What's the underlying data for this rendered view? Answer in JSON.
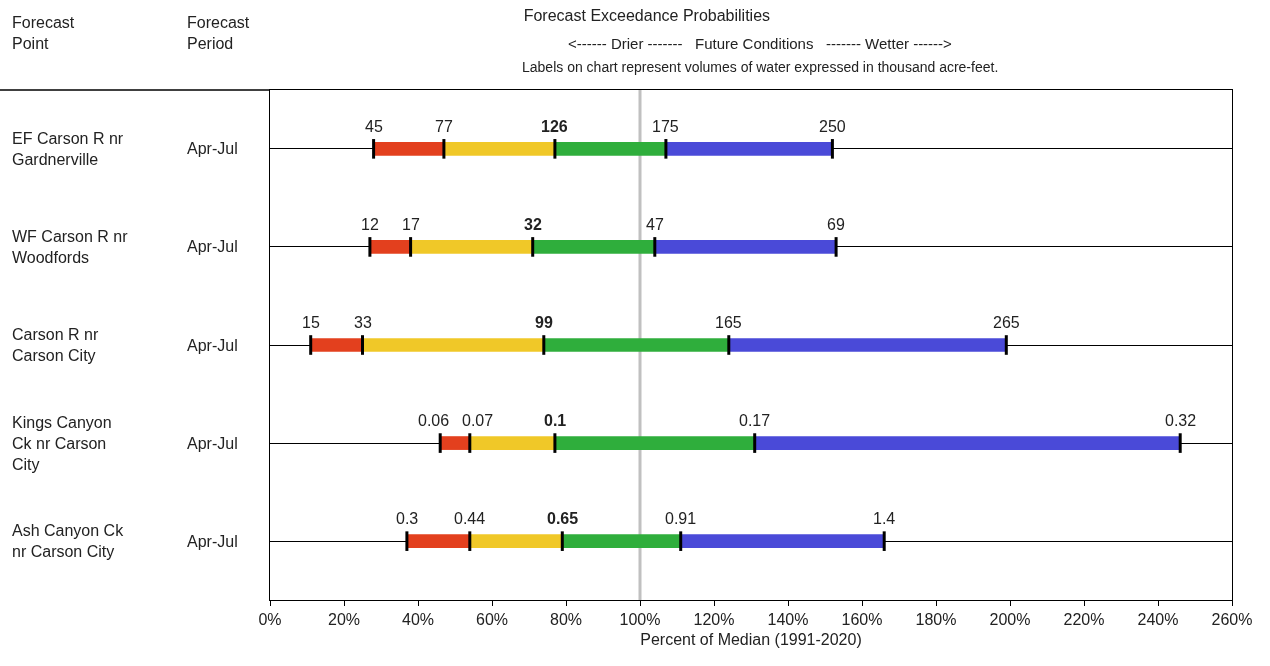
{
  "chart_data": {
    "type": "bar",
    "orientation": "horizontal",
    "title": "Forecast Exceedance Probabilities",
    "xlabel": "Percent of Median (1991-2020)",
    "categories": [
      "EF Carson R nr Gardnerville",
      "WF Carson R nr Woodfords",
      "Carson R nr Carson City",
      "Kings Canyon Ck nr Carson City",
      "Ash Canyon Ck nr Carson City"
    ],
    "y2_categories": [
      "Apr-Jul",
      "Apr-Jul",
      "Apr-Jul",
      "Apr-Jul",
      "Apr-Jul"
    ],
    "series": [
      {
        "color": "#e3401e",
        "base": [
          28,
          27,
          11,
          46,
          37
        ],
        "values": [
          19,
          11,
          14,
          8,
          17
        ]
      },
      {
        "color": "#f0c828",
        "base": [
          47,
          38,
          25,
          54,
          54
        ],
        "values": [
          30,
          33,
          49,
          23,
          25
        ]
      },
      {
        "color": "#2fae3c",
        "base": [
          77,
          71,
          74,
          77,
          79
        ],
        "values": [
          30,
          33,
          50,
          54,
          32
        ]
      },
      {
        "color": "#4a4ad8",
        "base": [
          107,
          104,
          124,
          131,
          111
        ],
        "values": [
          45,
          49,
          75,
          115,
          55
        ]
      }
    ],
    "annotations": [
      "<------ Drier -------   Future Conditions   ------- Wetter ------>",
      "Labels on chart represent volumes of water expressed in thousand acre-feet.",
      "Forecast Point",
      "Forecast Period",
      {
        "text": "45",
        "x": 28,
        "y": "EF Carson R nr Gardnerville"
      },
      {
        "text": "77",
        "x": 47,
        "y": "EF Carson R nr Gardnerville"
      },
      {
        "text": "126",
        "x": 77,
        "y": "EF Carson R nr Gardnerville"
      },
      {
        "text": "175",
        "x": 107,
        "y": "EF Carson R nr Gardnerville"
      },
      {
        "text": "250",
        "x": 152,
        "y": "EF Carson R nr Gardnerville"
      },
      {
        "text": "12",
        "x": 27,
        "y": "WF Carson R nr Woodfords"
      },
      {
        "text": "17",
        "x": 38,
        "y": "WF Carson R nr Woodfords"
      },
      {
        "text": "32",
        "x": 71,
        "y": "WF Carson R nr Woodfords"
      },
      {
        "text": "47",
        "x": 104,
        "y": "WF Carson R nr Woodfords"
      },
      {
        "text": "69",
        "x": 153,
        "y": "WF Carson R nr Woodfords"
      },
      {
        "text": "15",
        "x": 11,
        "y": "Carson R nr Carson City"
      },
      {
        "text": "33",
        "x": 25,
        "y": "Carson R nr Carson City"
      },
      {
        "text": "99",
        "x": 74,
        "y": "Carson R nr Carson City"
      },
      {
        "text": "165",
        "x": 124,
        "y": "Carson R nr Carson City"
      },
      {
        "text": "265",
        "x": 199,
        "y": "Carson R nr Carson City"
      },
      {
        "text": "0.06",
        "x": 46,
        "y": "Kings Canyon Ck nr Carson City"
      },
      {
        "text": "0.07",
        "x": 54,
        "y": "Kings Canyon Ck nr Carson City"
      },
      {
        "text": "0.1",
        "x": 77,
        "y": "Kings Canyon Ck nr Carson City"
      },
      {
        "text": "0.17",
        "x": 131,
        "y": "Kings Canyon Ck nr Carson City"
      },
      {
        "text": "0.32",
        "x": 246,
        "y": "Kings Canyon Ck nr Carson City"
      },
      {
        "text": "0.3",
        "x": 37,
        "y": "Ash Canyon Ck nr Carson City"
      },
      {
        "text": "0.44",
        "x": 54,
        "y": "Ash Canyon Ck nr Carson City"
      },
      {
        "text": "0.65",
        "x": 79,
        "y": "Ash Canyon Ck nr Carson City"
      },
      {
        "text": "0.91",
        "x": 111,
        "y": "Ash Canyon Ck nr Carson City"
      },
      {
        "text": "1.4",
        "x": 166,
        "y": "Ash Canyon Ck nr Carson City"
      }
    ],
    "xlim": [
      0,
      260
    ],
    "xticks": [
      {
        "value": 0,
        "label": "0%"
      },
      {
        "value": 20,
        "label": "20%"
      },
      {
        "value": 40,
        "label": "40%"
      },
      {
        "value": 60,
        "label": "60%"
      },
      {
        "value": 80,
        "label": "80%"
      },
      {
        "value": 100,
        "label": "100%"
      },
      {
        "value": 120,
        "label": "120%"
      },
      {
        "value": 140,
        "label": "140%"
      },
      {
        "value": 160,
        "label": "160%"
      },
      {
        "value": 180,
        "label": "180%"
      },
      {
        "value": 200,
        "label": "200%"
      },
      {
        "value": 220,
        "label": "220%"
      },
      {
        "value": 240,
        "label": "240%"
      },
      {
        "value": 260,
        "label": "260%"
      }
    ],
    "ref_lines": [
      {
        "axis": "x",
        "value": 100,
        "color": "#c0c0c0"
      }
    ],
    "grid": "y"
  }
}
